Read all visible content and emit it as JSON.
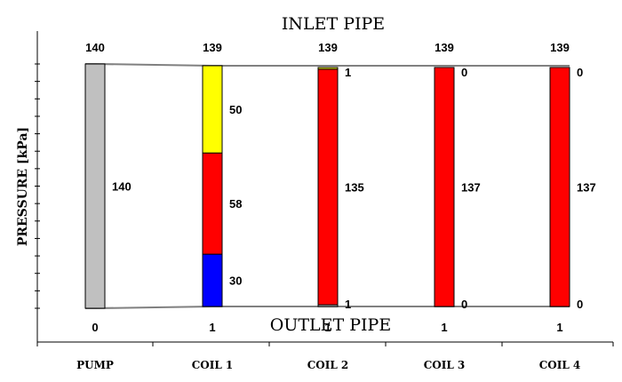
{
  "chart_data": {
    "type": "bar",
    "ylabel": "PRESSURE [kPa]",
    "top_pipe_label": "INLET PIPE",
    "bottom_pipe_label": "OUTLET PIPE",
    "ylim": [
      0,
      140
    ],
    "categories": [
      "PUMP",
      "COIL 1",
      "COIL 2",
      "COIL 3",
      "COIL 4"
    ],
    "inlet_pressure": [
      140,
      139,
      139,
      139,
      139
    ],
    "outlet_pressure": [
      0,
      1,
      1,
      1,
      1
    ],
    "stacks": [
      {
        "category": "PUMP",
        "segments": [
          {
            "value": 140,
            "label": "140",
            "color": "#c0c0c0"
          }
        ]
      },
      {
        "category": "COIL 1",
        "segments": [
          {
            "value": 30,
            "label": "30",
            "color": "#0000ff"
          },
          {
            "value": 58,
            "label": "58",
            "color": "#ff0000"
          },
          {
            "value": 50,
            "label": "50",
            "color": "#ffff00"
          }
        ]
      },
      {
        "category": "COIL 2",
        "segments": [
          {
            "value": 1,
            "label": "1",
            "color": "#c0c0c0"
          },
          {
            "value": 135,
            "label": "135",
            "color": "#ff0000"
          },
          {
            "value": 1,
            "label": "1",
            "color": "#ffff00"
          }
        ]
      },
      {
        "category": "COIL 3",
        "segments": [
          {
            "value": 0,
            "label": "0",
            "color": "#c0c0c0"
          },
          {
            "value": 137,
            "label": "137",
            "color": "#ff0000"
          },
          {
            "value": 0,
            "label": "0",
            "color": "#ffff00"
          }
        ]
      },
      {
        "category": "COIL 4",
        "segments": [
          {
            "value": 0,
            "label": "0",
            "color": "#c0c0c0"
          },
          {
            "value": 137,
            "label": "137",
            "color": "#ff0000"
          },
          {
            "value": 0,
            "label": "0",
            "color": "#ffff00"
          }
        ]
      }
    ],
    "grid": false,
    "legend": "none"
  }
}
